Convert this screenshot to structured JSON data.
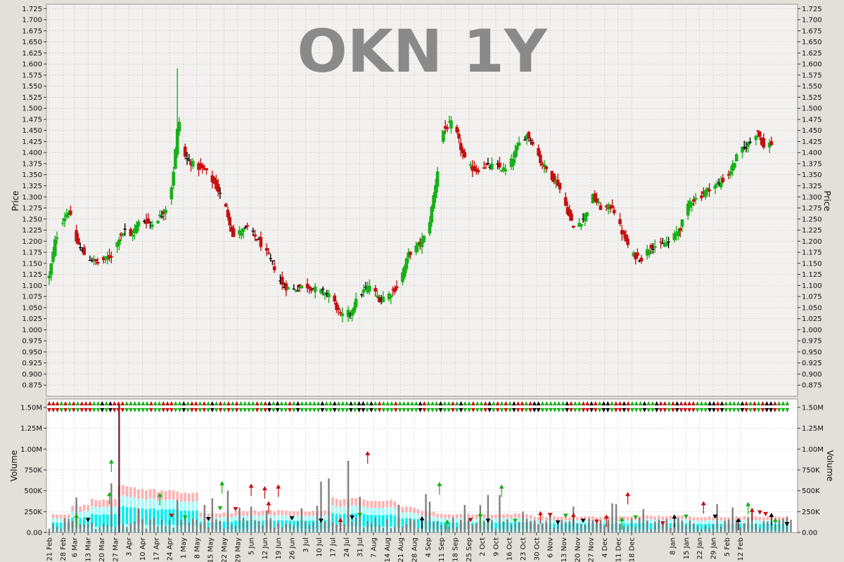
{
  "colors": {
    "background": "#e3dfd9",
    "plot_background": "#f2f1ef",
    "volume_background": "#ffffff",
    "grid": "#c9c9c9",
    "up": "#18b018",
    "down": "#c41010",
    "neutral": "#000000",
    "volume_bar": "#808080",
    "band_pink": "#ffb0b0",
    "band_cyan_light": "#a0ffff",
    "band_cyan": "#00f0f0",
    "watermark": "#8a8a8a"
  },
  "chart_data": [
    {
      "type": "candlestick",
      "title": "OKN 1Y",
      "ylabel": "Price",
      "ylim": [
        0.85,
        1.735
      ],
      "yticks": [
        "0.875",
        "0.900",
        "0.925",
        "0.950",
        "0.975",
        "1.000",
        "1.025",
        "1.050",
        "1.075",
        "1.100",
        "1.125",
        "1.150",
        "1.175",
        "1.200",
        "1.225",
        "1.250",
        "1.275",
        "1.300",
        "1.325",
        "1.350",
        "1.375",
        "1.400",
        "1.425",
        "1.450",
        "1.475",
        "1.500",
        "1.525",
        "1.550",
        "1.575",
        "1.600",
        "1.625",
        "1.650",
        "1.675",
        "1.700",
        "1.725"
      ],
      "grid": true,
      "keypoints": [
        [
          0,
          1.12
        ],
        [
          3,
          1.2
        ],
        [
          6,
          1.24
        ],
        [
          10,
          1.27
        ],
        [
          14,
          1.2
        ],
        [
          18,
          1.17
        ],
        [
          25,
          1.15
        ],
        [
          33,
          1.17
        ],
        [
          36,
          1.21
        ],
        [
          40,
          1.23
        ],
        [
          42,
          1.21
        ],
        [
          47,
          1.25
        ],
        [
          53,
          1.24
        ],
        [
          58,
          1.26
        ],
        [
          62,
          1.29
        ],
        [
          64,
          1.36
        ],
        [
          66,
          1.45
        ],
        [
          67,
          1.47
        ],
        [
          70,
          1.39
        ],
        [
          75,
          1.37
        ],
        [
          80,
          1.36
        ],
        [
          85,
          1.33
        ],
        [
          90,
          1.29
        ],
        [
          95,
          1.21
        ],
        [
          98,
          1.22
        ],
        [
          102,
          1.23
        ],
        [
          108,
          1.2
        ],
        [
          115,
          1.15
        ],
        [
          120,
          1.1
        ],
        [
          125,
          1.09
        ],
        [
          132,
          1.1
        ],
        [
          138,
          1.09
        ],
        [
          145,
          1.08
        ],
        [
          150,
          1.03
        ],
        [
          155,
          1.04
        ],
        [
          160,
          1.08
        ],
        [
          165,
          1.1
        ],
        [
          170,
          1.07
        ],
        [
          175,
          1.08
        ],
        [
          180,
          1.1
        ],
        [
          185,
          1.17
        ],
        [
          190,
          1.19
        ],
        [
          195,
          1.22
        ],
        [
          199,
          1.33
        ],
        [
          203,
          1.45
        ],
        [
          208,
          1.47
        ],
        [
          212,
          1.41
        ],
        [
          215,
          1.37
        ],
        [
          220,
          1.36
        ],
        [
          225,
          1.37
        ],
        [
          230,
          1.37
        ],
        [
          235,
          1.36
        ],
        [
          238,
          1.38
        ],
        [
          242,
          1.42
        ],
        [
          246,
          1.44
        ],
        [
          250,
          1.42
        ],
        [
          253,
          1.38
        ],
        [
          258,
          1.35
        ],
        [
          262,
          1.33
        ],
        [
          266,
          1.28
        ],
        [
          270,
          1.23
        ],
        [
          275,
          1.25
        ],
        [
          280,
          1.3
        ],
        [
          285,
          1.27
        ],
        [
          290,
          1.28
        ],
        [
          295,
          1.22
        ],
        [
          300,
          1.17
        ],
        [
          305,
          1.16
        ],
        [
          310,
          1.19
        ],
        [
          315,
          1.19
        ],
        [
          320,
          1.2
        ],
        [
          325,
          1.23
        ],
        [
          330,
          1.29
        ],
        [
          335,
          1.3
        ],
        [
          340,
          1.32
        ],
        [
          345,
          1.33
        ],
        [
          350,
          1.35
        ],
        [
          355,
          1.4
        ],
        [
          358,
          1.41
        ],
        [
          362,
          1.43
        ],
        [
          365,
          1.45
        ],
        [
          368,
          1.41
        ],
        [
          370,
          1.42
        ]
      ],
      "spikes": [
        [
          66,
          1.59
        ]
      ]
    },
    {
      "type": "bar",
      "ylabel": "Volume",
      "ylim": [
        0,
        1600000
      ],
      "yticks": [
        "0.00",
        "250K",
        "500K",
        "750K",
        "1.00M",
        "1.25M",
        "1.50M"
      ],
      "xticks": [
        {
          "day": 0,
          "label": "21 Feb"
        },
        {
          "day": 7,
          "label": "28 Feb"
        },
        {
          "day": 13,
          "label": "6 Mar"
        },
        {
          "day": 20,
          "label": "13 Mar"
        },
        {
          "day": 27,
          "label": "20 Mar"
        },
        {
          "day": 34,
          "label": "27 Mar"
        },
        {
          "day": 41,
          "label": "3 Apr"
        },
        {
          "day": 48,
          "label": "10 Apr"
        },
        {
          "day": 55,
          "label": "17 Apr"
        },
        {
          "day": 62,
          "label": "24 Apr"
        },
        {
          "day": 69,
          "label": "1 May"
        },
        {
          "day": 76,
          "label": "8 May"
        },
        {
          "day": 83,
          "label": "15 May"
        },
        {
          "day": 90,
          "label": "22 May"
        },
        {
          "day": 97,
          "label": "29 May"
        },
        {
          "day": 104,
          "label": "5 Jun"
        },
        {
          "day": 111,
          "label": "12 Jun"
        },
        {
          "day": 118,
          "label": "19 Jun"
        },
        {
          "day": 125,
          "label": "26 Jun"
        },
        {
          "day": 132,
          "label": "3 Jul"
        },
        {
          "day": 139,
          "label": "10 Jul"
        },
        {
          "day": 146,
          "label": "17 Jul"
        },
        {
          "day": 153,
          "label": "24 Jul"
        },
        {
          "day": 160,
          "label": "31 Jul"
        },
        {
          "day": 167,
          "label": "7 Aug"
        },
        {
          "day": 174,
          "label": "14 Aug"
        },
        {
          "day": 181,
          "label": "21 Aug"
        },
        {
          "day": 188,
          "label": "28 Aug"
        },
        {
          "day": 195,
          "label": "4 Sep"
        },
        {
          "day": 202,
          "label": "11 Sep"
        },
        {
          "day": 209,
          "label": "18 Sep"
        },
        {
          "day": 216,
          "label": "25 Sep"
        },
        {
          "day": 223,
          "label": "2 Oct"
        },
        {
          "day": 230,
          "label": "9 Oct"
        },
        {
          "day": 237,
          "label": "16 Oct"
        },
        {
          "day": 244,
          "label": "23 Oct"
        },
        {
          "day": 251,
          "label": "30 Oct"
        },
        {
          "day": 258,
          "label": "6 Nov"
        },
        {
          "day": 265,
          "label": "13 Nov"
        },
        {
          "day": 272,
          "label": "20 Nov"
        },
        {
          "day": 279,
          "label": "27 Nov"
        },
        {
          "day": 286,
          "label": "4 Dec"
        },
        {
          "day": 293,
          "label": "11 Dec"
        },
        {
          "day": 300,
          "label": "18 Dec"
        },
        {
          "day": 321,
          "label": "8 Jan"
        },
        {
          "day": 328,
          "label": "15 Jan"
        },
        {
          "day": 335,
          "label": "22 Jan"
        },
        {
          "day": 342,
          "label": "29 Jan"
        },
        {
          "day": 349,
          "label": "5 Feb"
        },
        {
          "day": 356,
          "label": "12 Feb"
        }
      ],
      "big_volume": [
        {
          "day": 14,
          "v": 420000
        },
        {
          "day": 33,
          "v": 590000
        },
        {
          "day": 36,
          "v": 1550000
        },
        {
          "day": 47,
          "v": 290000
        },
        {
          "day": 66,
          "v": 390000
        },
        {
          "day": 80,
          "v": 330000
        },
        {
          "day": 85,
          "v": 410000
        },
        {
          "day": 92,
          "v": 500000
        },
        {
          "day": 98,
          "v": 300000
        },
        {
          "day": 104,
          "v": 310000
        },
        {
          "day": 113,
          "v": 260000
        },
        {
          "day": 130,
          "v": 290000
        },
        {
          "day": 138,
          "v": 320000
        },
        {
          "day": 140,
          "v": 610000
        },
        {
          "day": 145,
          "v": 650000
        },
        {
          "day": 155,
          "v": 860000
        },
        {
          "day": 160,
          "v": 430000
        },
        {
          "day": 180,
          "v": 330000
        },
        {
          "day": 195,
          "v": 460000
        },
        {
          "day": 197,
          "v": 370000
        },
        {
          "day": 215,
          "v": 330000
        },
        {
          "day": 222,
          "v": 330000
        },
        {
          "day": 226,
          "v": 450000
        },
        {
          "day": 233,
          "v": 450000
        },
        {
          "day": 245,
          "v": 250000
        },
        {
          "day": 258,
          "v": 230000
        },
        {
          "day": 270,
          "v": 310000
        },
        {
          "day": 290,
          "v": 350000
        },
        {
          "day": 292,
          "v": 340000
        },
        {
          "day": 307,
          "v": 280000
        },
        {
          "day": 345,
          "v": 340000
        },
        {
          "day": 352,
          "v": 300000
        },
        {
          "day": 363,
          "v": 290000
        }
      ],
      "volume_markers": [
        {
          "day": 14,
          "y": 210000,
          "dir": "up",
          "color": "green"
        },
        {
          "day": 20,
          "y": 150000,
          "dir": "down",
          "color": "black"
        },
        {
          "day": 31,
          "y": 470000,
          "dir": "up",
          "color": "green"
        },
        {
          "day": 32,
          "y": 860000,
          "dir": "up",
          "color": "green"
        },
        {
          "day": 57,
          "y": 460000,
          "dir": "up",
          "color": "green"
        },
        {
          "day": 63,
          "y": 200000,
          "dir": "down",
          "color": "red"
        },
        {
          "day": 70,
          "y": 180000,
          "dir": "down",
          "color": "green"
        },
        {
          "day": 82,
          "y": 160000,
          "dir": "down",
          "color": "black"
        },
        {
          "day": 88,
          "y": 290000,
          "dir": "down",
          "color": "green"
        },
        {
          "day": 89,
          "y": 600000,
          "dir": "up",
          "color": "green"
        },
        {
          "day": 96,
          "y": 280000,
          "dir": "down",
          "color": "red"
        },
        {
          "day": 104,
          "y": 570000,
          "dir": "up",
          "color": "red"
        },
        {
          "day": 111,
          "y": 540000,
          "dir": "up",
          "color": "red"
        },
        {
          "day": 113,
          "y": 360000,
          "dir": "up",
          "color": "red"
        },
        {
          "day": 118,
          "y": 560000,
          "dir": "up",
          "color": "red"
        },
        {
          "day": 125,
          "y": 170000,
          "dir": "down",
          "color": "black"
        },
        {
          "day": 140,
          "y": 140000,
          "dir": "down",
          "color": "black"
        },
        {
          "day": 150,
          "y": 160000,
          "dir": "up",
          "color": "red"
        },
        {
          "day": 156,
          "y": 180000,
          "dir": "down",
          "color": "black"
        },
        {
          "day": 160,
          "y": 210000,
          "dir": "down",
          "color": "green"
        },
        {
          "day": 164,
          "y": 960000,
          "dir": "up",
          "color": "red"
        },
        {
          "day": 192,
          "y": 180000,
          "dir": "up",
          "color": "black"
        },
        {
          "day": 201,
          "y": 590000,
          "dir": "up",
          "color": "green"
        },
        {
          "day": 205,
          "y": 140000,
          "dir": "up",
          "color": "green"
        },
        {
          "day": 217,
          "y": 150000,
          "dir": "down",
          "color": "red"
        },
        {
          "day": 222,
          "y": 230000,
          "dir": "up",
          "color": "green"
        },
        {
          "day": 226,
          "y": 140000,
          "dir": "down",
          "color": "black"
        },
        {
          "day": 233,
          "y": 560000,
          "dir": "up",
          "color": "green"
        },
        {
          "day": 240,
          "y": 140000,
          "dir": "down",
          "color": "green"
        },
        {
          "day": 253,
          "y": 240000,
          "dir": "up",
          "color": "red"
        },
        {
          "day": 258,
          "y": 210000,
          "dir": "down",
          "color": "red"
        },
        {
          "day": 262,
          "y": 120000,
          "dir": "down",
          "color": "black"
        },
        {
          "day": 266,
          "y": 200000,
          "dir": "down",
          "color": "green"
        },
        {
          "day": 270,
          "y": 220000,
          "dir": "up",
          "color": "red"
        },
        {
          "day": 275,
          "y": 140000,
          "dir": "down",
          "color": "black"
        },
        {
          "day": 282,
          "y": 130000,
          "dir": "down",
          "color": "red"
        },
        {
          "day": 287,
          "y": 200000,
          "dir": "up",
          "color": "red"
        },
        {
          "day": 295,
          "y": 170000,
          "dir": "up",
          "color": "green"
        },
        {
          "day": 298,
          "y": 470000,
          "dir": "up",
          "color": "red"
        },
        {
          "day": 302,
          "y": 180000,
          "dir": "down",
          "color": "green"
        },
        {
          "day": 316,
          "y": 110000,
          "dir": "down",
          "color": "red"
        },
        {
          "day": 322,
          "y": 200000,
          "dir": "up",
          "color": "black"
        },
        {
          "day": 328,
          "y": 190000,
          "dir": "down",
          "color": "green"
        },
        {
          "day": 337,
          "y": 360000,
          "dir": "up",
          "color": "red"
        },
        {
          "day": 343,
          "y": 190000,
          "dir": "down",
          "color": "black"
        },
        {
          "day": 355,
          "y": 160000,
          "dir": "up",
          "color": "black"
        },
        {
          "day": 360,
          "y": 350000,
          "dir": "up",
          "color": "green"
        },
        {
          "day": 362,
          "y": 280000,
          "dir": "up",
          "color": "red"
        },
        {
          "day": 366,
          "y": 240000,
          "dir": "down",
          "color": "red"
        },
        {
          "day": 369,
          "y": 220000,
          "dir": "down",
          "color": "red"
        },
        {
          "day": 372,
          "y": 220000,
          "dir": "up",
          "color": "black"
        },
        {
          "day": 374,
          "y": 160000,
          "dir": "up",
          "color": "green"
        },
        {
          "day": 380,
          "y": 100000,
          "dir": "down",
          "color": "black"
        }
      ]
    }
  ]
}
